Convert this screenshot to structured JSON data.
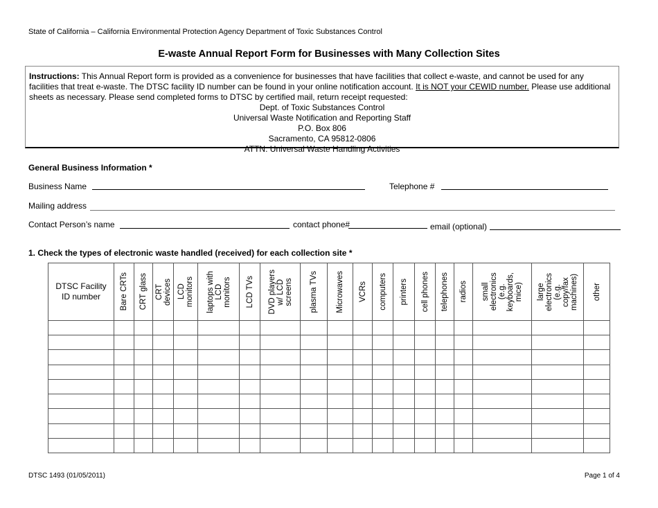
{
  "header": {
    "agency": "State of California – California Environmental Protection Agency Department of Toxic Substances Control",
    "title": "E-waste Annual Report Form for Businesses with Many Collection Sites"
  },
  "instructions": {
    "label": "Instructions:",
    "text1": " This Annual Report form is provided as a convenience for businesses that have facilities that collect e-waste, and cannot be used for any facilities that treat e-waste. The DTSC facility ID number can be found in your online notification account. ",
    "underlined": "It is NOT your CEWID number.",
    "text2": " Please use additional sheets as necessary. Please send completed forms to DTSC by certified mail, return receipt requested:",
    "address": [
      "Dept. of Toxic Substances Control",
      "Universal Waste Notification and Reporting Staff",
      "P.O. Box 806",
      "Sacramento, CA 95812-0806",
      "ATTN: Universal Waste Handling Activities"
    ]
  },
  "general": {
    "heading": "General Business Information *",
    "business_name": "Business Name",
    "telephone": "Telephone #",
    "mailing_address": "Mailing address",
    "contact_name": "Contact Person’s name",
    "contact_phone": "contact phone#",
    "email": "email (optional)"
  },
  "section1": {
    "heading": "1.   Check the types of electronic waste handled (received) for each collection site *",
    "id_header": "DTSC Facility\nID number",
    "columns": [
      "Bare CRTs",
      "CRT glass",
      "CRT\ndevices",
      "LCD\nmonitors",
      "laptops with\nLCD\nmonitors",
      "LCD TVs",
      "DVD players\nw/ LCD\nscreens",
      "plasma TVs",
      "Microwaves",
      "VCRs",
      "computers",
      "printers",
      "cell phones",
      "telephones",
      "radios",
      "small\nelectronics\n(e.g.\nkeyboards,\nmice)",
      "large\nelectronics\n(e.g.\ncopy/fax\nmachines)",
      "other"
    ],
    "row_count": 9
  },
  "footer": {
    "form_id": "DTSC 1493 (01/05/2011)",
    "page": "Page 1 of 4"
  }
}
